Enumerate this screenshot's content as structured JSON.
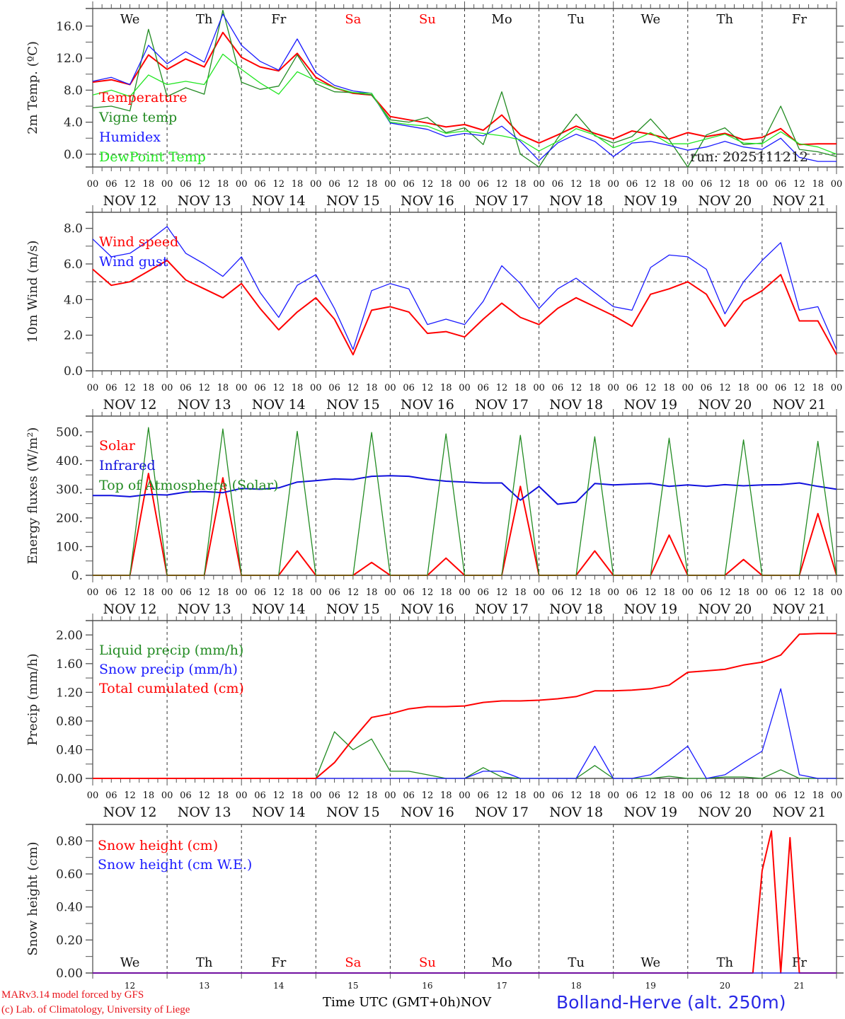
{
  "chart_data": [
    {
      "type": "line",
      "panel": "temperature",
      "ylabel": "2m Temp. (ºC)",
      "ylim": [
        -1.6,
        18.2
      ],
      "yticks": [
        "0.0",
        "4.0",
        "8.0",
        "12.0",
        "16.0"
      ],
      "ytick_values": [
        0,
        4,
        8,
        12,
        16
      ],
      "ref_line": 0,
      "annotation": "run: 2025111212",
      "show_weekdays": true,
      "x_hours_step": 6,
      "series": [
        {
          "name": "Temperature",
          "color": "#ff0000",
          "values": [
            9.0,
            9.3,
            8.7,
            12.4,
            10.6,
            11.9,
            10.9,
            15.2,
            12.1,
            10.9,
            10.4,
            12.6,
            9.6,
            8.3,
            7.6,
            7.4,
            4.7,
            4.3,
            3.9,
            3.4,
            3.7,
            3.0,
            4.9,
            2.4,
            1.4,
            2.4,
            3.5,
            2.6,
            1.9,
            2.9,
            2.5,
            1.9,
            2.7,
            2.2,
            2.6,
            1.8,
            2.1,
            3.2,
            1.2,
            1.3,
            1.3
          ]
        },
        {
          "name": "Vigne temp",
          "color": "#228b22",
          "values": [
            5.8,
            6.0,
            5.4,
            15.6,
            7.2,
            8.3,
            7.5,
            18.0,
            9.0,
            8.1,
            8.5,
            12.4,
            8.8,
            7.8,
            7.7,
            7.4,
            4.3,
            4.0,
            4.6,
            2.7,
            3.3,
            1.2,
            7.8,
            0.0,
            -1.6,
            2.0,
            5.0,
            2.3,
            1.4,
            2.2,
            4.4,
            1.8,
            -1.6,
            2.4,
            3.3,
            1.2,
            1.4,
            6.0,
            0.6,
            0.3,
            -0.3
          ]
        },
        {
          "name": "Humidex",
          "color": "#1a1aff",
          "values": [
            9.1,
            9.6,
            8.7,
            13.6,
            11.3,
            12.8,
            11.5,
            17.5,
            13.6,
            11.6,
            10.5,
            14.4,
            10.2,
            8.6,
            7.9,
            7.6,
            3.9,
            3.5,
            3.1,
            2.2,
            2.6,
            2.3,
            3.5,
            1.6,
            -0.8,
            1.4,
            2.5,
            1.6,
            -0.3,
            1.4,
            1.6,
            1.1,
            0.5,
            0.9,
            1.6,
            0.9,
            0.6,
            2.0,
            -0.4,
            -0.9,
            -0.9
          ]
        },
        {
          "name": "DewPoint Temp",
          "color": "#22e622",
          "values": [
            7.4,
            8.0,
            7.2,
            9.9,
            8.7,
            9.1,
            8.7,
            12.5,
            10.6,
            8.9,
            7.5,
            10.3,
            9.2,
            8.3,
            7.7,
            7.6,
            4.0,
            3.7,
            3.5,
            2.6,
            2.9,
            2.6,
            2.3,
            1.8,
            0.4,
            1.6,
            3.2,
            2.4,
            0.8,
            1.6,
            2.7,
            1.3,
            1.3,
            1.9,
            2.5,
            1.4,
            1.3,
            2.8,
            1.3,
            0.9,
            0.0
          ]
        }
      ]
    },
    {
      "type": "line",
      "panel": "wind",
      "ylabel": "10m Wind (m/s)",
      "ylim": [
        0,
        8.9
      ],
      "yticks": [
        "0.0",
        "2.0",
        "4.0",
        "6.0",
        "8.0"
      ],
      "ytick_values": [
        0,
        2,
        4,
        6,
        8
      ],
      "ref_line": 5,
      "show_weekdays": false,
      "x_hours_step": 6,
      "series": [
        {
          "name": "Wind speed",
          "color": "#ff0000",
          "values": [
            5.7,
            4.8,
            5.0,
            5.6,
            6.2,
            5.1,
            4.6,
            4.1,
            4.9,
            3.5,
            2.3,
            3.3,
            4.1,
            2.9,
            0.9,
            3.4,
            3.6,
            3.3,
            2.1,
            2.2,
            1.9,
            2.9,
            3.8,
            3.0,
            2.6,
            3.5,
            4.1,
            3.6,
            3.1,
            2.5,
            4.3,
            4.6,
            5.0,
            4.3,
            2.5,
            3.9,
            4.5,
            5.4,
            2.8,
            2.8,
            0.9
          ]
        },
        {
          "name": "Wind gust",
          "color": "#1a1aff",
          "values": [
            7.4,
            6.4,
            6.6,
            7.3,
            8.1,
            6.6,
            6.0,
            5.3,
            6.4,
            4.4,
            3.0,
            4.8,
            5.4,
            3.5,
            1.2,
            4.5,
            4.9,
            4.6,
            2.6,
            2.9,
            2.6,
            3.9,
            5.9,
            4.9,
            3.5,
            4.6,
            5.2,
            4.4,
            3.6,
            3.4,
            5.8,
            6.5,
            6.4,
            5.7,
            3.2,
            5.0,
            6.2,
            7.2,
            3.4,
            3.6,
            1.2
          ]
        }
      ]
    },
    {
      "type": "line",
      "panel": "energy",
      "ylabel": "Energy fluxes (W/m²)",
      "ylim": [
        0,
        555
      ],
      "yticks": [
        "0.",
        "100.",
        "200.",
        "300.",
        "400.",
        "500."
      ],
      "ytick_values": [
        0,
        100,
        200,
        300,
        400,
        500
      ],
      "show_weekdays": false,
      "x_hours_step": 6,
      "series": [
        {
          "name": "Solar",
          "color": "#ff0000",
          "values": [
            0,
            0,
            0,
            355,
            0,
            0,
            0,
            340,
            0,
            0,
            0,
            85,
            0,
            0,
            0,
            45,
            0,
            0,
            0,
            60,
            0,
            0,
            0,
            310,
            0,
            0,
            0,
            85,
            0,
            0,
            0,
            140,
            0,
            0,
            0,
            55,
            0,
            0,
            0,
            215,
            0
          ]
        },
        {
          "name": "Infrared",
          "color": "#1010dd",
          "values": [
            278,
            278,
            274,
            282,
            280,
            290,
            292,
            288,
            303,
            300,
            305,
            325,
            330,
            336,
            334,
            345,
            347,
            345,
            335,
            328,
            325,
            322,
            322,
            262,
            310,
            248,
            255,
            320,
            315,
            318,
            320,
            310,
            315,
            310,
            316,
            312,
            315,
            316,
            322,
            310,
            300
          ]
        },
        {
          "name": "Top of Atmosphere (Solar)",
          "color": "#228b22",
          "values": [
            0,
            0,
            0,
            515,
            0,
            0,
            0,
            510,
            0,
            0,
            0,
            502,
            0,
            0,
            0,
            498,
            0,
            0,
            0,
            493,
            0,
            0,
            0,
            488,
            0,
            0,
            0,
            483,
            0,
            0,
            0,
            478,
            0,
            0,
            0,
            472,
            0,
            0,
            0,
            467,
            0
          ]
        }
      ]
    },
    {
      "type": "line",
      "panel": "precip",
      "ylabel": "Precip (mm/h)",
      "ylim": [
        0,
        2.2
      ],
      "yticks": [
        "0.00",
        "0.40",
        "0.80",
        "1.20",
        "1.60",
        "2.00"
      ],
      "ytick_values": [
        0,
        0.4,
        0.8,
        1.2,
        1.6,
        2.0
      ],
      "show_weekdays": false,
      "x_hours_step": 6,
      "series": [
        {
          "name": "Liquid precip (mm/h)",
          "color": "#228b22",
          "values": [
            0,
            0,
            0,
            0,
            0,
            0,
            0,
            0,
            0,
            0,
            0,
            0,
            0,
            0.65,
            0.4,
            0.55,
            0.1,
            0.1,
            0.05,
            0,
            0,
            0.15,
            0.02,
            0,
            0,
            0,
            0,
            0.18,
            0,
            0,
            0,
            0.03,
            0,
            0,
            0.02,
            0.02,
            0,
            0.12,
            0,
            0,
            0
          ]
        },
        {
          "name": "Snow precip (mm/h)",
          "color": "#1a1aff",
          "values": [
            0,
            0,
            0,
            0,
            0,
            0,
            0,
            0,
            0,
            0,
            0,
            0,
            0,
            0,
            0,
            0,
            0,
            0,
            0,
            0,
            0,
            0.1,
            0.1,
            0,
            0,
            0,
            0,
            0.45,
            0,
            0,
            0.05,
            0.25,
            0.45,
            0,
            0.05,
            0.22,
            0.38,
            1.25,
            0.05,
            0,
            0
          ]
        },
        {
          "name": "Total cumulated (cm)",
          "color": "#ff0000",
          "values": [
            0,
            0,
            0,
            0,
            0,
            0,
            0,
            0,
            0,
            0,
            0,
            0,
            0,
            0.22,
            0.55,
            0.85,
            0.9,
            0.97,
            1.0,
            1.0,
            1.01,
            1.06,
            1.08,
            1.08,
            1.09,
            1.11,
            1.14,
            1.22,
            1.22,
            1.23,
            1.25,
            1.3,
            1.48,
            1.5,
            1.52,
            1.58,
            1.62,
            1.72,
            2.01,
            2.02,
            2.02
          ]
        }
      ]
    },
    {
      "type": "line",
      "panel": "snow",
      "ylabel": "Snow height (cm)",
      "ylim": [
        0,
        0.9
      ],
      "yticks": [
        "0.00",
        "0.20",
        "0.40",
        "0.60",
        "0.80"
      ],
      "ytick_values": [
        0,
        0.2,
        0.4,
        0.6,
        0.8
      ],
      "show_weekdays": true,
      "weekdays_position": "bottom",
      "x_hours_step": 3,
      "x_range_hours": [
        0,
        240
      ],
      "series": [
        {
          "name": "Snow height (cm)",
          "color": "#ff0000",
          "values_sparse": [
            [
              0,
              0
            ],
            [
              213,
              0
            ],
            [
              216,
              0.62
            ],
            [
              219,
              0.86
            ],
            [
              222,
              0
            ],
            [
              225,
              0.82
            ],
            [
              228,
              0
            ],
            [
              240,
              0
            ]
          ]
        },
        {
          "name": "Snow height (cm W.E.)",
          "color": "#1a1aff",
          "values_sparse": [
            [
              0,
              0
            ],
            [
              240,
              0
            ]
          ]
        }
      ]
    }
  ],
  "axis": {
    "hour_ticks": [
      "00",
      "06",
      "12",
      "18"
    ],
    "final_hour_tick": "00",
    "days": [
      "NOV 12",
      "NOV 13",
      "NOV 14",
      "NOV 15",
      "NOV 16",
      "NOV 17",
      "NOV 18",
      "NOV 19",
      "NOV 20",
      "NOV 21"
    ],
    "day_numbers": [
      "12",
      "13",
      "14",
      "15",
      "16",
      "17",
      "18",
      "19",
      "20",
      "21"
    ],
    "weekdays": [
      {
        "label": "We",
        "weekend": false
      },
      {
        "label": "Th",
        "weekend": false
      },
      {
        "label": "Fr",
        "weekend": false
      },
      {
        "label": "Sa",
        "weekend": true
      },
      {
        "label": "Su",
        "weekend": true
      },
      {
        "label": "Mo",
        "weekend": false
      },
      {
        "label": "Tu",
        "weekend": false
      },
      {
        "label": "We",
        "weekend": false
      },
      {
        "label": "Th",
        "weekend": false
      },
      {
        "label": "Fr",
        "weekend": false
      }
    ],
    "weekend_color": "#ff0000"
  },
  "footer": {
    "model_line": "MARv3.14 model forced by GFS",
    "credit_line": "(c) Lab. of Climatology, University of Liege",
    "time_label": "Time UTC (GMT+0h)",
    "month_label": "NOV",
    "station": "Bolland-Herve (alt. 250m)"
  }
}
